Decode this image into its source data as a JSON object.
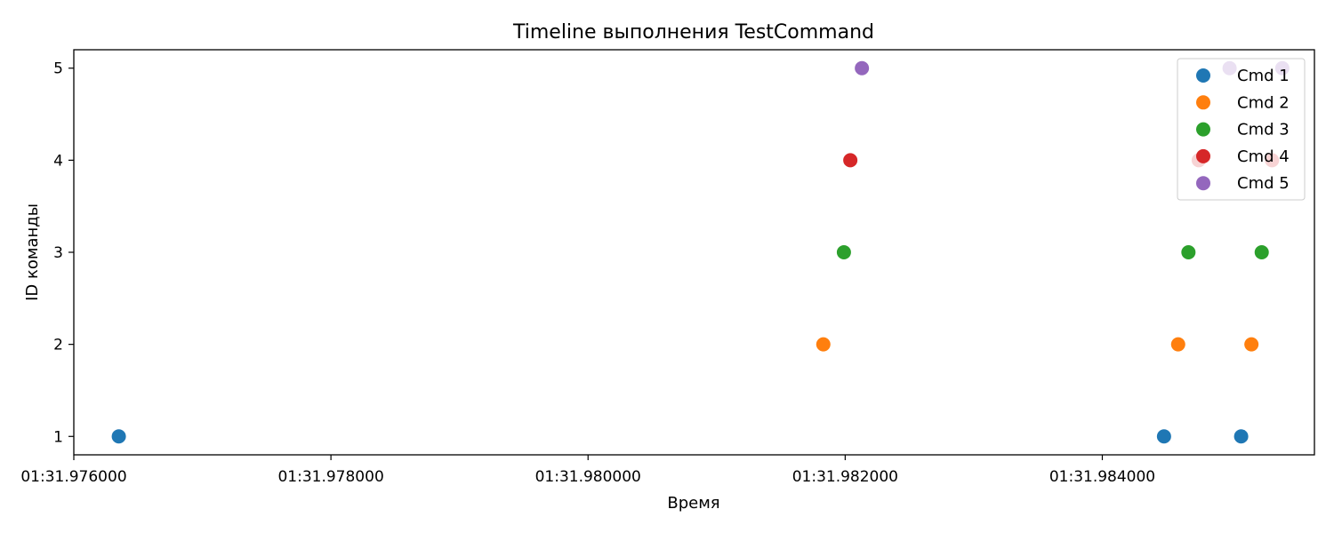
{
  "chart_data": {
    "type": "scatter",
    "title": "Timeline выполнения TestCommand",
    "xlabel": "Время",
    "ylabel": "ID команды",
    "x_unit": "seconds (mm:ss.ffffff)",
    "xlim": [
      "01:31.9760",
      "01:31.98565"
    ],
    "ylim": [
      0.8,
      5.2
    ],
    "x_ticks": [
      "01:31.976000",
      "01:31.978000",
      "01:31.980000",
      "01:31.982000",
      "01:31.984000"
    ],
    "y_ticks": [
      "1",
      "2",
      "3",
      "4",
      "5"
    ],
    "grid": false,
    "legend_position": "top-right",
    "series": [
      {
        "name": "Cmd 1",
        "color": "#1f77b4",
        "points": [
          {
            "x": "01:31.976350",
            "y": 1
          },
          {
            "x": "01:31.984480",
            "y": 1
          },
          {
            "x": "01:31.985080",
            "y": 1
          }
        ]
      },
      {
        "name": "Cmd 2",
        "color": "#ff7f0e",
        "points": [
          {
            "x": "01:31.981830",
            "y": 2
          },
          {
            "x": "01:31.984590",
            "y": 2
          },
          {
            "x": "01:31.985160",
            "y": 2
          }
        ]
      },
      {
        "name": "Cmd 3",
        "color": "#2ca02c",
        "points": [
          {
            "x": "01:31.981990",
            "y": 3
          },
          {
            "x": "01:31.984670",
            "y": 3
          },
          {
            "x": "01:31.985240",
            "y": 3
          }
        ]
      },
      {
        "name": "Cmd 4",
        "color": "#d62728",
        "points": [
          {
            "x": "01:31.982040",
            "y": 4
          },
          {
            "x": "01:31.984750",
            "y": 4
          },
          {
            "x": "01:31.985320",
            "y": 4
          }
        ]
      },
      {
        "name": "Cmd 5",
        "color": "#9467bd",
        "points": [
          {
            "x": "01:31.982130",
            "y": 5
          },
          {
            "x": "01:31.984990",
            "y": 5
          },
          {
            "x": "01:31.985400",
            "y": 5
          }
        ]
      }
    ]
  }
}
